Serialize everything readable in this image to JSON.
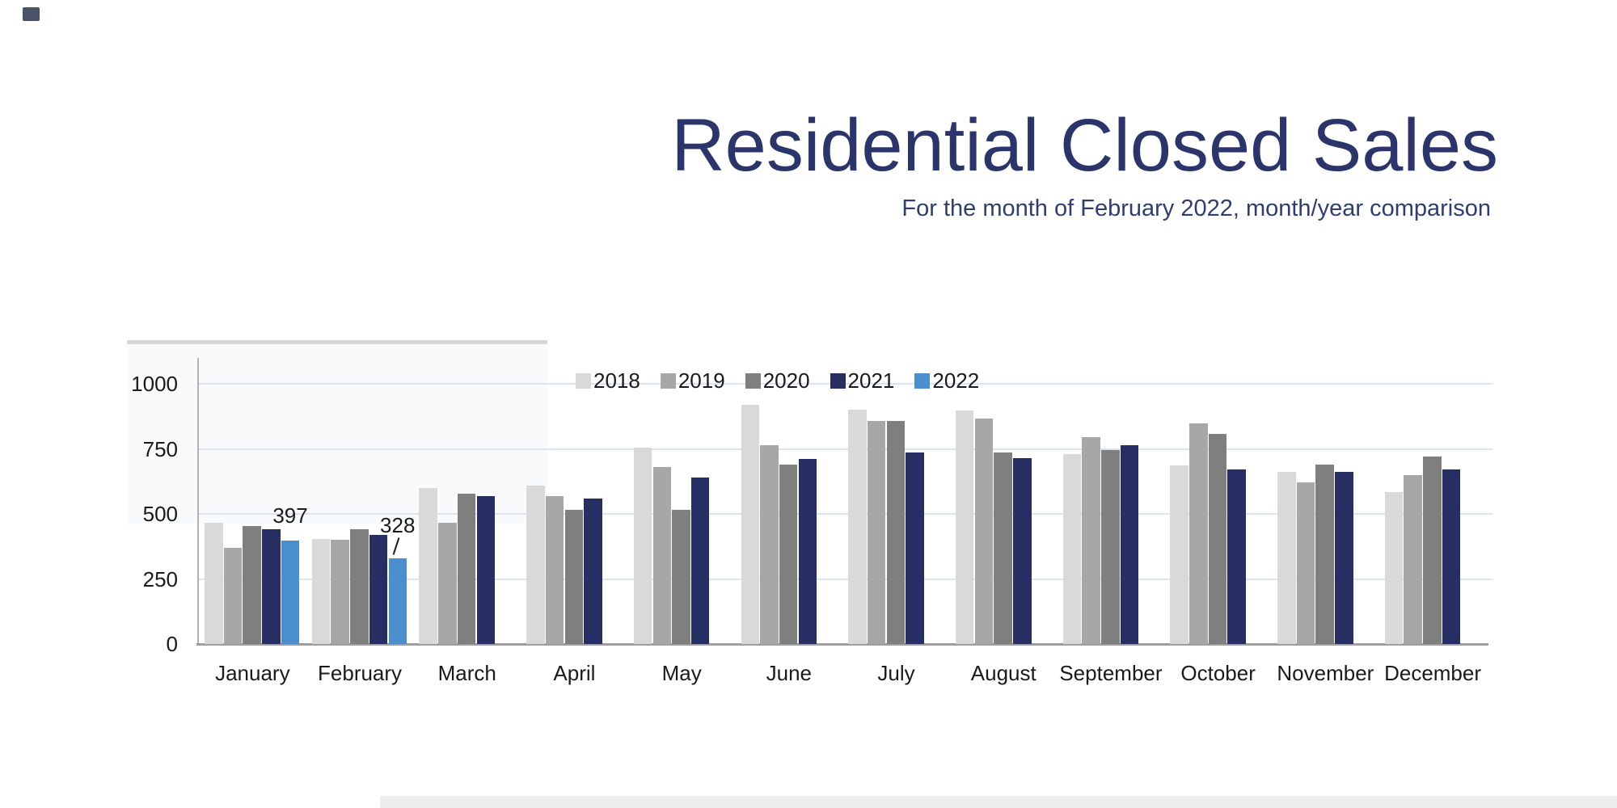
{
  "page": {
    "title": "Residential Closed Sales",
    "subtitle": "For the month of February 2022, month/year comparison"
  },
  "colors": {
    "title_text": "#2b356c",
    "subtitle_text": "#2f3d72",
    "axis_text": "#1a1a1a",
    "gridline": "#dde4f0",
    "axis_line": "#9e9e9e"
  },
  "chart_data": {
    "type": "bar",
    "title": "Residential Closed Sales",
    "subtitle": "For the month of February 2022, month/year comparison",
    "categories": [
      "January",
      "February",
      "March",
      "April",
      "May",
      "June",
      "July",
      "August",
      "September",
      "October",
      "November",
      "December"
    ],
    "series": [
      {
        "name": "2018",
        "color": "#d9d9d9",
        "values": [
          465,
          405,
          600,
          610,
          755,
          920,
          900,
          898,
          730,
          685,
          660,
          585
        ]
      },
      {
        "name": "2019",
        "color": "#a7a7a7",
        "values": [
          370,
          400,
          465,
          568,
          680,
          765,
          858,
          868,
          795,
          848,
          620,
          650
        ]
      },
      {
        "name": "2020",
        "color": "#7f7f7f",
        "values": [
          452,
          441,
          578,
          515,
          515,
          690,
          856,
          735,
          745,
          808,
          690,
          720
        ]
      },
      {
        "name": "2021",
        "color": "#272e63",
        "values": [
          440,
          420,
          568,
          558,
          640,
          712,
          735,
          714,
          765,
          670,
          660,
          670
        ]
      },
      {
        "name": "2022",
        "color": "#4b8fce",
        "values": [
          397,
          328,
          null,
          null,
          null,
          null,
          null,
          null,
          null,
          null,
          null,
          null
        ]
      }
    ],
    "ylim": [
      0,
      1000
    ],
    "yticks": [
      0,
      250,
      500,
      750,
      1000
    ],
    "grid": "horizontal",
    "legend_position": "top-center-inside-plot",
    "annotations": [
      {
        "text": "397",
        "category": "January",
        "series": "2022",
        "leader": false
      },
      {
        "text": "328",
        "category": "February",
        "series": "2022",
        "leader": true
      }
    ]
  }
}
